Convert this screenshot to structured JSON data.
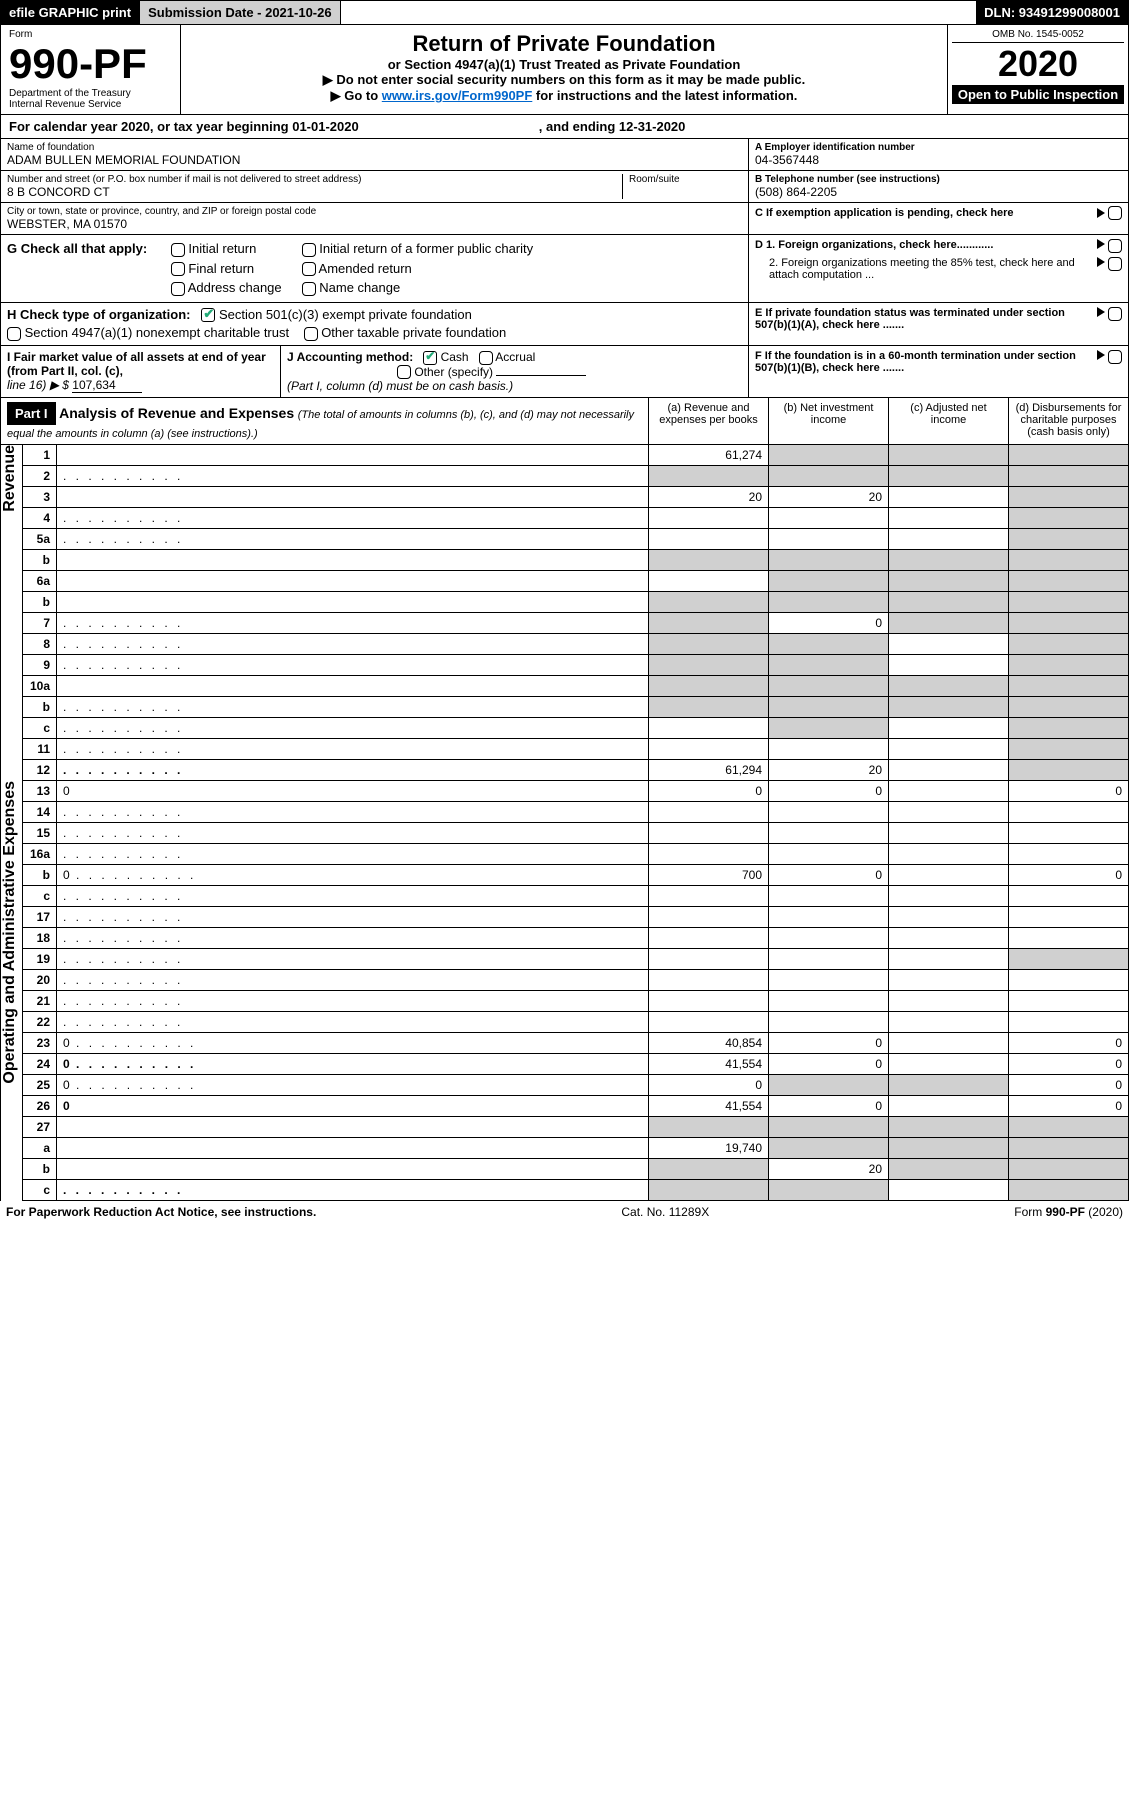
{
  "topbar": {
    "efile": "efile GRAPHIC print",
    "submission": "Submission Date - 2021-10-26",
    "dln": "DLN: 93491299008001"
  },
  "header": {
    "form_label": "Form",
    "form_number": "990-PF",
    "dept": "Department of the Treasury",
    "irs": "Internal Revenue Service",
    "title": "Return of Private Foundation",
    "subtitle": "or Section 4947(a)(1) Trust Treated as Private Foundation",
    "warn": "▶ Do not enter social security numbers on this form as it may be made public.",
    "goto_pre": "▶ Go to ",
    "goto_link": "www.irs.gov/Form990PF",
    "goto_post": " for instructions and the latest information.",
    "omb": "OMB No. 1545-0052",
    "year": "2020",
    "inspection": "Open to Public Inspection"
  },
  "calendar": {
    "text": "For calendar year 2020, or tax year beginning 01-01-2020",
    "ending": ", and ending 12-31-2020"
  },
  "foundation": {
    "name_label": "Name of foundation",
    "name": "ADAM BULLEN MEMORIAL FOUNDATION",
    "street_label": "Number and street (or P.O. box number if mail is not delivered to street address)",
    "street": "8 B CONCORD CT",
    "room_label": "Room/suite",
    "city_label": "City or town, state or province, country, and ZIP or foreign postal code",
    "city": "WEBSTER, MA  01570"
  },
  "right_info": {
    "a_label": "A Employer identification number",
    "ein": "04-3567448",
    "b_label": "B Telephone number (see instructions)",
    "phone": "(508) 864-2205",
    "c_label": "C If exemption application is pending, check here",
    "d1": "D 1. Foreign organizations, check here............",
    "d2": "2. Foreign organizations meeting the 85% test, check here and attach computation ...",
    "e": "E  If private foundation status was terminated under section 507(b)(1)(A), check here .......",
    "f": "F  If the foundation is in a 60-month termination under section 507(b)(1)(B), check here ......."
  },
  "g": {
    "label": "G Check all that apply:",
    "opts": [
      "Initial return",
      "Final return",
      "Address change",
      "Initial return of a former public charity",
      "Amended return",
      "Name change"
    ]
  },
  "h": {
    "label": "H Check type of organization:",
    "opt1": "Section 501(c)(3) exempt private foundation",
    "opt2": "Section 4947(a)(1) nonexempt charitable trust",
    "opt3": "Other taxable private foundation"
  },
  "i": {
    "label": "I Fair market value of all assets at end of year (from Part II, col. (c),",
    "line": "line 16) ▶ $",
    "value": "107,634"
  },
  "j": {
    "label": "J Accounting method:",
    "cash": "Cash",
    "accrual": "Accrual",
    "other": "Other (specify)",
    "note": "(Part I, column (d) must be on cash basis.)"
  },
  "part1": {
    "tag": "Part I",
    "title": "Analysis of Revenue and Expenses",
    "note": " (The total of amounts in columns (b), (c), and (d) may not necessarily equal the amounts in column (a) (see instructions).)",
    "col_a": "(a) Revenue and expenses per books",
    "col_b": "(b) Net investment income",
    "col_c": "(c) Adjusted net income",
    "col_d": "(d) Disbursements for charitable purposes (cash basis only)"
  },
  "side_labels": {
    "revenue": "Revenue",
    "expenses": "Operating and Administrative Expenses"
  },
  "rows": [
    {
      "n": "1",
      "d": "",
      "a": "61,274",
      "b": "",
      "c": "",
      "shade_b": true,
      "shade_c": true,
      "shade_d": true
    },
    {
      "n": "2",
      "d": "",
      "a": "",
      "b": "",
      "c": "",
      "shade_a": true,
      "shade_b": true,
      "shade_c": true,
      "shade_d": true,
      "dots": true
    },
    {
      "n": "3",
      "d": "",
      "a": "20",
      "b": "20",
      "c": "",
      "shade_d": true
    },
    {
      "n": "4",
      "d": "",
      "a": "",
      "b": "",
      "c": "",
      "shade_d": true,
      "dots": true
    },
    {
      "n": "5a",
      "d": "",
      "a": "",
      "b": "",
      "c": "",
      "shade_d": true,
      "dots": true
    },
    {
      "n": "b",
      "d": "",
      "a": "",
      "b": "",
      "c": "",
      "shade_a": true,
      "shade_b": true,
      "shade_c": true,
      "shade_d": true
    },
    {
      "n": "6a",
      "d": "",
      "a": "",
      "b": "",
      "c": "",
      "shade_b": true,
      "shade_c": true,
      "shade_d": true
    },
    {
      "n": "b",
      "d": "",
      "a": "",
      "b": "",
      "c": "",
      "shade_a": true,
      "shade_b": true,
      "shade_c": true,
      "shade_d": true
    },
    {
      "n": "7",
      "d": "",
      "a": "",
      "b": "0",
      "c": "",
      "shade_a": true,
      "shade_c": true,
      "shade_d": true,
      "dots": true
    },
    {
      "n": "8",
      "d": "",
      "a": "",
      "b": "",
      "c": "",
      "shade_a": true,
      "shade_b": true,
      "shade_d": true,
      "dots": true
    },
    {
      "n": "9",
      "d": "",
      "a": "",
      "b": "",
      "c": "",
      "shade_a": true,
      "shade_b": true,
      "shade_d": true,
      "dots": true
    },
    {
      "n": "10a",
      "d": "",
      "a": "",
      "b": "",
      "c": "",
      "shade_a": true,
      "shade_b": true,
      "shade_c": true,
      "shade_d": true
    },
    {
      "n": "b",
      "d": "",
      "a": "",
      "b": "",
      "c": "",
      "shade_a": true,
      "shade_b": true,
      "shade_c": true,
      "shade_d": true,
      "dots": true
    },
    {
      "n": "c",
      "d": "",
      "a": "",
      "b": "",
      "c": "",
      "shade_b": true,
      "shade_d": true,
      "dots": true
    },
    {
      "n": "11",
      "d": "",
      "a": "",
      "b": "",
      "c": "",
      "shade_d": true,
      "dots": true
    },
    {
      "n": "12",
      "d": "",
      "a": "61,294",
      "b": "20",
      "c": "",
      "shade_d": true,
      "bold": true,
      "dots": true
    },
    {
      "n": "13",
      "d": "0",
      "a": "0",
      "b": "0",
      "c": ""
    },
    {
      "n": "14",
      "d": "",
      "a": "",
      "b": "",
      "c": "",
      "dots": true
    },
    {
      "n": "15",
      "d": "",
      "a": "",
      "b": "",
      "c": "",
      "dots": true
    },
    {
      "n": "16a",
      "d": "",
      "a": "",
      "b": "",
      "c": "",
      "dots": true
    },
    {
      "n": "b",
      "d": "0",
      "a": "700",
      "b": "0",
      "c": "",
      "dots": true
    },
    {
      "n": "c",
      "d": "",
      "a": "",
      "b": "",
      "c": "",
      "dots": true
    },
    {
      "n": "17",
      "d": "",
      "a": "",
      "b": "",
      "c": "",
      "dots": true
    },
    {
      "n": "18",
      "d": "",
      "a": "",
      "b": "",
      "c": "",
      "dots": true
    },
    {
      "n": "19",
      "d": "",
      "a": "",
      "b": "",
      "c": "",
      "shade_d": true,
      "dots": true
    },
    {
      "n": "20",
      "d": "",
      "a": "",
      "b": "",
      "c": "",
      "dots": true
    },
    {
      "n": "21",
      "d": "",
      "a": "",
      "b": "",
      "c": "",
      "dots": true
    },
    {
      "n": "22",
      "d": "",
      "a": "",
      "b": "",
      "c": "",
      "dots": true
    },
    {
      "n": "23",
      "d": "0",
      "a": "40,854",
      "b": "0",
      "c": "",
      "dots": true
    },
    {
      "n": "24",
      "d": "0",
      "a": "41,554",
      "b": "0",
      "c": "",
      "bold": true,
      "dots": true
    },
    {
      "n": "25",
      "d": "0",
      "a": "0",
      "b": "",
      "c": "",
      "shade_b": true,
      "shade_c": true,
      "dots": true
    },
    {
      "n": "26",
      "d": "0",
      "a": "41,554",
      "b": "0",
      "c": "",
      "bold": true
    },
    {
      "n": "27",
      "d": "",
      "a": "",
      "b": "",
      "c": "",
      "shade_a": true,
      "shade_b": true,
      "shade_c": true,
      "shade_d": true
    },
    {
      "n": "a",
      "d": "",
      "a": "19,740",
      "b": "",
      "c": "",
      "shade_b": true,
      "shade_c": true,
      "shade_d": true,
      "bold": true
    },
    {
      "n": "b",
      "d": "",
      "a": "",
      "b": "20",
      "c": "",
      "shade_a": true,
      "shade_c": true,
      "shade_d": true,
      "bold": true
    },
    {
      "n": "c",
      "d": "",
      "a": "",
      "b": "",
      "c": "",
      "shade_a": true,
      "shade_b": true,
      "shade_d": true,
      "bold": true,
      "dots": true
    }
  ],
  "footer": {
    "left": "For Paperwork Reduction Act Notice, see instructions.",
    "mid": "Cat. No. 11289X",
    "right": "Form 990-PF (2020)"
  }
}
